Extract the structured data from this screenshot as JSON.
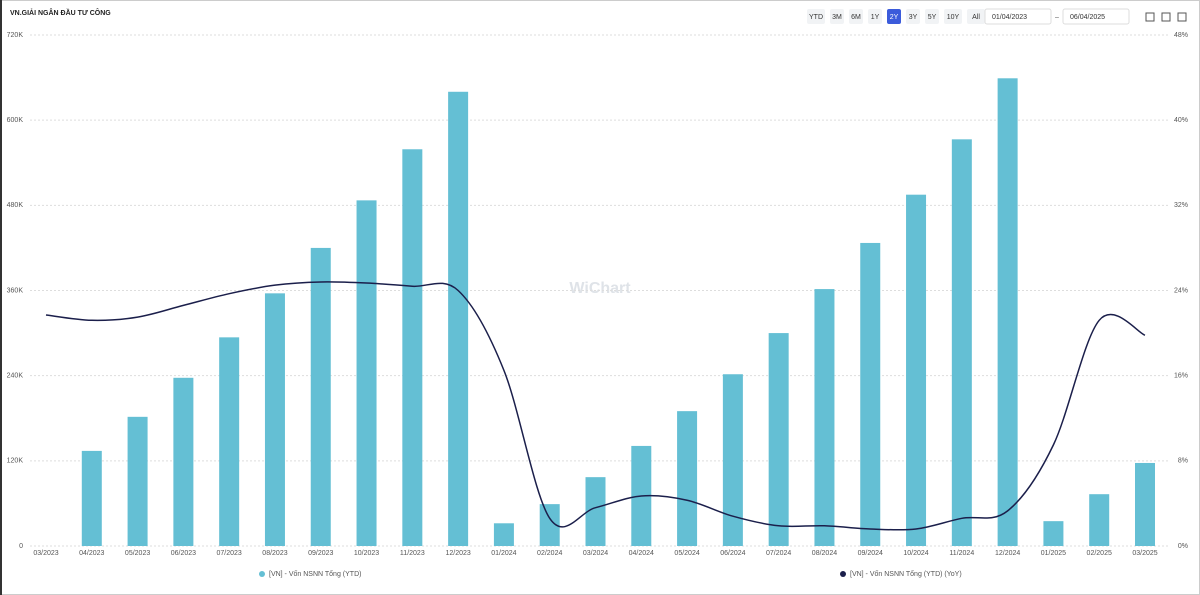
{
  "ui": {
    "range_buttons": [
      "YTD",
      "3M",
      "6M",
      "1Y",
      "2Y",
      "3Y",
      "5Y",
      "10Y",
      "All"
    ],
    "active_range_index": 4,
    "date_from": "01/04/2023",
    "date_separator": "–",
    "date_to": "06/04/2025",
    "watermark": "WiChart"
  },
  "chart_data": {
    "type": "bar-line",
    "title": "VN.GIẢI NGÂN ĐẦU TƯ CÔNG",
    "categories": [
      "03/2023",
      "04/2023",
      "05/2023",
      "06/2023",
      "07/2023",
      "08/2023",
      "09/2023",
      "10/2023",
      "11/2023",
      "12/2023",
      "01/2024",
      "02/2024",
      "03/2024",
      "04/2024",
      "05/2024",
      "06/2024",
      "07/2024",
      "08/2024",
      "09/2024",
      "10/2024",
      "11/2024",
      "12/2024",
      "01/2025",
      "02/2025",
      "03/2025"
    ],
    "series": [
      {
        "name": "[VN] - Vốn NSNN Tổng (YTD)",
        "type": "bar",
        "color": "#64bfd4",
        "values": [
          null,
          134000,
          182000,
          237000,
          294000,
          356000,
          420000,
          487000,
          559000,
          640000,
          32000,
          59000,
          97000,
          141000,
          190000,
          242000,
          300000,
          362000,
          427000,
          495000,
          573000,
          659000,
          35000,
          73000,
          117000
        ]
      },
      {
        "name": "[VN] - Vốn NSNN Tổng (YTD) (YoY)",
        "type": "line",
        "axis": "y2",
        "color": "#1b1f4b",
        "values": [
          21.7,
          21.2,
          21.5,
          22.6,
          23.7,
          24.5,
          24.8,
          24.7,
          24.4,
          24.0,
          16.5,
          2.6,
          3.6,
          4.7,
          4.3,
          2.8,
          1.9,
          1.9,
          1.6,
          1.6,
          2.6,
          3.3,
          9.5,
          21.2,
          19.8
        ]
      }
    ],
    "ylim": [
      0,
      720000
    ],
    "yticks": [
      0,
      {
        "value": 120000,
        "label": "120K"
      },
      {
        "value": 240000,
        "label": "240K"
      },
      {
        "value": 360000,
        "label": "360K"
      },
      {
        "value": 480000,
        "label": "480K"
      },
      {
        "value": 600000,
        "label": "600K"
      },
      {
        "value": 720000,
        "label": "720K"
      }
    ],
    "y2lim": [
      0,
      48
    ],
    "y2ticks": [
      {
        "value": 0,
        "label": "0%"
      },
      {
        "value": 8,
        "label": "8%"
      },
      {
        "value": 16,
        "label": "16%"
      },
      {
        "value": 24,
        "label": "24%"
      },
      {
        "value": 32,
        "label": "32%"
      },
      {
        "value": 40,
        "label": "40%"
      },
      {
        "value": 48,
        "label": "48%"
      }
    ],
    "grid": true
  }
}
